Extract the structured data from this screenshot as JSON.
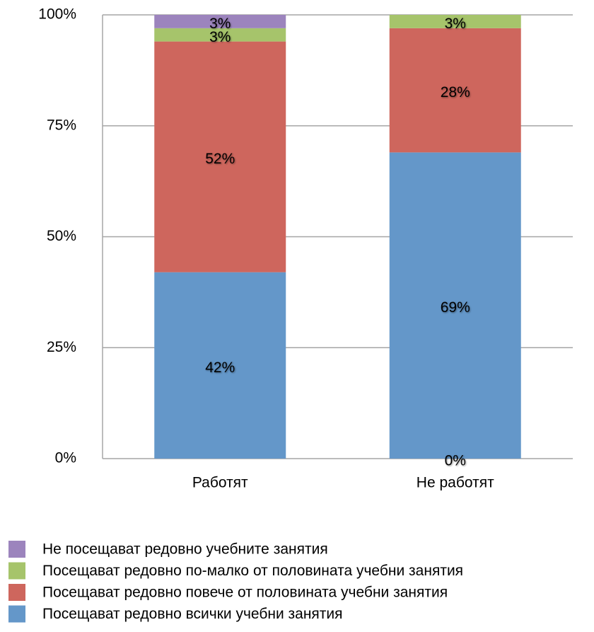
{
  "chart_data": {
    "type": "stacked-bar",
    "categories": [
      "Работят",
      "Не работят"
    ],
    "series": [
      {
        "name": "Посещават редовно всички учебни занятия",
        "color": "#6497c9",
        "values": [
          42,
          69
        ],
        "value_labels": [
          "42%",
          "69%"
        ]
      },
      {
        "name": "Посещават редовно повече от половината учебни занятия",
        "color": "#ce665d",
        "values": [
          52,
          28
        ],
        "value_labels": [
          "52%",
          "28%"
        ]
      },
      {
        "name": "Посещават редовно по-малко от половината учебни занятия",
        "color": "#a6c46b",
        "values": [
          3,
          3
        ],
        "value_labels": [
          "3%",
          "3%"
        ]
      },
      {
        "name": "Не посещават редовно учебните занятия",
        "color": "#9c84bd",
        "values": [
          3,
          0
        ],
        "value_labels": [
          "3%",
          "0%"
        ]
      }
    ],
    "ylim": [
      0,
      100
    ],
    "yticks": [
      {
        "value": 0,
        "label": "0%"
      },
      {
        "value": 25,
        "label": "25%"
      },
      {
        "value": 50,
        "label": "50%"
      },
      {
        "value": 75,
        "label": "75%"
      },
      {
        "value": 100,
        "label": "100%"
      }
    ],
    "grid": true
  }
}
